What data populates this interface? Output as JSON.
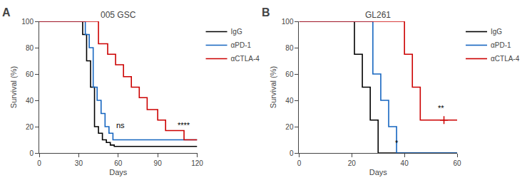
{
  "chart_data": [
    {
      "type": "line",
      "line_style": "step",
      "title": "005 GSC",
      "panel_label": "A",
      "xlabel": "Days",
      "ylabel": "Survival (%)",
      "xlim": [
        0,
        120
      ],
      "ylim": [
        0,
        100
      ],
      "xticks": [
        0,
        30,
        60,
        90,
        120
      ],
      "yticks": [
        0,
        20,
        40,
        60,
        80,
        100
      ],
      "grid": false,
      "legend": "upper right",
      "series": [
        {
          "name": "IgG",
          "color": "#000000",
          "x": [
            0,
            30,
            33,
            36,
            39,
            42,
            45,
            48,
            51,
            54,
            57,
            120
          ],
          "values": [
            100,
            100,
            90,
            70,
            50,
            20,
            15,
            10,
            8,
            6,
            5,
            5
          ]
        },
        {
          "name": "αPD-1",
          "color": "#1565c0",
          "x": [
            0,
            32,
            35,
            38,
            41,
            44,
            47,
            50,
            53,
            56,
            65,
            120
          ],
          "values": [
            100,
            100,
            90,
            80,
            50,
            40,
            30,
            20,
            15,
            10,
            10,
            10
          ]
        },
        {
          "name": "αCTLA-4",
          "color": "#cc0000",
          "x": [
            0,
            40,
            45,
            52,
            58,
            64,
            70,
            76,
            82,
            90,
            96,
            103,
            110,
            120
          ],
          "values": [
            100,
            100,
            83,
            75,
            67,
            58,
            50,
            42,
            33,
            25,
            17,
            17,
            10,
            10
          ]
        }
      ],
      "annotations": [
        {
          "text": "ns",
          "x": 62,
          "y": 17
        },
        {
          "text": "****",
          "x": 110,
          "y": 17
        }
      ]
    },
    {
      "type": "line",
      "line_style": "step",
      "title": "GL261",
      "panel_label": "B",
      "xlabel": "Days",
      "ylabel": "Survival (%)",
      "xlim": [
        0,
        60
      ],
      "ylim": [
        0,
        100
      ],
      "xticks": [
        0,
        20,
        40,
        60
      ],
      "yticks": [
        0,
        20,
        40,
        60,
        80,
        100
      ],
      "grid": false,
      "legend": "upper right",
      "series": [
        {
          "name": "IgG",
          "color": "#000000",
          "x": [
            0,
            18,
            21,
            24,
            27,
            30,
            60
          ],
          "values": [
            100,
            100,
            75,
            50,
            25,
            0,
            0
          ]
        },
        {
          "name": "αPD-1",
          "color": "#1565c0",
          "x": [
            0,
            25,
            28,
            31,
            34,
            37,
            60
          ],
          "values": [
            100,
            100,
            60,
            40,
            20,
            0,
            0
          ]
        },
        {
          "name": "αCTLA-4",
          "color": "#cc0000",
          "x": [
            0,
            35,
            38,
            40,
            43,
            46,
            50,
            60
          ],
          "values": [
            100,
            100,
            100,
            75,
            50,
            25,
            25,
            25
          ],
          "censors": {
            "x": [
              55
            ],
            "values": [
              25
            ]
          }
        }
      ],
      "annotations": [
        {
          "text": "*",
          "x": 37,
          "y": 3
        },
        {
          "text": "**",
          "x": 54,
          "y": 30
        }
      ]
    }
  ]
}
